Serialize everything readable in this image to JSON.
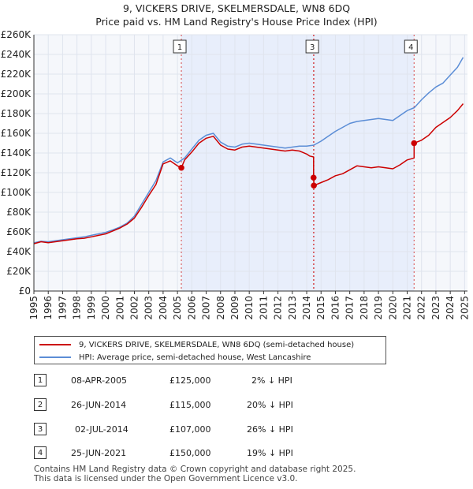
{
  "chart_data": {
    "type": "line",
    "title": "9, VICKERS DRIVE, SKELMERSDALE, WN8 6DQ",
    "subtitle": "Price paid vs. HM Land Registry's House Price Index (HPI)",
    "x_ticks": [
      "1995",
      "1996",
      "1997",
      "1998",
      "1999",
      "2000",
      "2001",
      "2002",
      "2003",
      "2004",
      "2005",
      "2006",
      "2007",
      "2008",
      "2009",
      "2010",
      "2011",
      "2012",
      "2013",
      "2014",
      "2015",
      "2016",
      "2017",
      "2018",
      "2019",
      "2020",
      "2021",
      "2022",
      "2023",
      "2024",
      "2025"
    ],
    "y_ticks": [
      "£0",
      "£20K",
      "£40K",
      "£60K",
      "£80K",
      "£100K",
      "£120K",
      "£140K",
      "£160K",
      "£180K",
      "£200K",
      "£220K",
      "£240K",
      "£260K"
    ],
    "xlim": [
      1995,
      2025.2
    ],
    "ylim": [
      0,
      260000
    ],
    "shaded_range": [
      2005.27,
      2021.48
    ],
    "series": [
      {
        "name": "9, VICKERS DRIVE, SKELMERSDALE, WN8 6DQ (semi-detached house)",
        "color": "#cc0000",
        "x": [
          1995,
          1995.5,
          1996,
          1996.5,
          1997,
          1997.5,
          1998,
          1998.5,
          1999,
          1999.5,
          2000,
          2000.5,
          2001,
          2001.5,
          2002,
          2002.5,
          2003,
          2003.5,
          2004,
          2004.5,
          2005,
          2005.27,
          2005.27,
          2005.5,
          2006,
          2006.5,
          2007,
          2007.5,
          2008,
          2008.5,
          2009,
          2009.5,
          2010,
          2010.5,
          2011,
          2011.5,
          2012,
          2012.5,
          2013,
          2013.5,
          2014,
          2014.2,
          2014.48,
          2014.48,
          2014.5,
          2014.5,
          2015,
          2015.5,
          2016,
          2016.5,
          2017,
          2017.5,
          2018,
          2018.5,
          2019,
          2019.5,
          2020,
          2020.5,
          2021,
          2021.48,
          2021.48,
          2022,
          2022.5,
          2023,
          2023.5,
          2024,
          2024.5,
          2024.9
        ],
        "values": [
          48000,
          50000,
          49000,
          50000,
          51000,
          52000,
          53000,
          53500,
          55000,
          56500,
          58000,
          61000,
          64000,
          68000,
          74000,
          85000,
          97000,
          108000,
          129000,
          132000,
          127000,
          125000,
          125000,
          133000,
          141000,
          150000,
          155000,
          157000,
          148000,
          144000,
          143000,
          146000,
          147000,
          146000,
          145000,
          144000,
          143000,
          142000,
          143000,
          142000,
          139000,
          137000,
          136000,
          115000,
          115000,
          107000,
          110000,
          113000,
          117000,
          119000,
          123000,
          127000,
          126000,
          125000,
          126000,
          125000,
          124000,
          128000,
          133000,
          135000,
          150000,
          153000,
          158000,
          166000,
          171000,
          176000,
          183000,
          190000
        ]
      },
      {
        "name": "HPI: Average price, semi-detached house, West Lancashire",
        "color": "#5b8dd6",
        "x": [
          1995,
          1995.5,
          1996,
          1996.5,
          1997,
          1997.5,
          1998,
          1998.5,
          1999,
          1999.5,
          2000,
          2000.5,
          2001,
          2001.5,
          2002,
          2002.5,
          2003,
          2003.5,
          2004,
          2004.5,
          2005,
          2005.5,
          2006,
          2006.5,
          2007,
          2007.5,
          2008,
          2008.5,
          2009,
          2009.5,
          2010,
          2010.5,
          2011,
          2011.5,
          2012,
          2012.5,
          2013,
          2013.5,
          2014,
          2014.5,
          2015,
          2015.5,
          2016,
          2016.5,
          2017,
          2017.5,
          2018,
          2018.5,
          2019,
          2019.5,
          2020,
          2020.5,
          2021,
          2021.5,
          2022,
          2022.5,
          2023,
          2023.5,
          2024,
          2024.5,
          2024.9
        ],
        "values": [
          49000,
          50500,
          50000,
          51000,
          52000,
          53000,
          54000,
          55000,
          56500,
          58000,
          59500,
          62000,
          65000,
          69000,
          76000,
          88000,
          100000,
          112000,
          131000,
          135000,
          130000,
          135000,
          144000,
          153000,
          158000,
          160000,
          151000,
          147000,
          146000,
          149000,
          150000,
          149000,
          148000,
          147000,
          146000,
          145000,
          146000,
          147000,
          147000,
          148000,
          152000,
          157000,
          162000,
          166000,
          170000,
          172000,
          173000,
          174000,
          175000,
          174000,
          173000,
          178000,
          183000,
          186000,
          194000,
          201000,
          207000,
          211000,
          219000,
          227000,
          237000
        ]
      }
    ],
    "transactions": [
      {
        "label": "1",
        "x": 2005.27,
        "price": 125000,
        "date": "08-APR-2005",
        "price_text": "£125,000",
        "hpi_text": "2% ↓ HPI"
      },
      {
        "label": "2",
        "x": 2014.48,
        "price": 115000,
        "date": "26-JUN-2014",
        "price_text": "£115,000",
        "hpi_text": "20% ↓ HPI"
      },
      {
        "label": "3",
        "x": 2014.5,
        "price": 107000,
        "date": "02-JUL-2014",
        "price_text": "£107,000",
        "hpi_text": "26% ↓ HPI"
      },
      {
        "label": "4",
        "x": 2021.48,
        "price": 150000,
        "date": "25-JUN-2021",
        "price_text": "£150,000",
        "hpi_text": "19% ↓ HPI"
      }
    ],
    "marker_labels_shown": [
      "1",
      "3",
      "4"
    ]
  },
  "footer": {
    "line1": "Contains HM Land Registry data © Crown copyright and database right 2025.",
    "line2": "This data is licensed under the Open Government Licence v3.0."
  },
  "colors": {
    "red": "#cc0000",
    "blue": "#5b8dd6",
    "shade": "#e8eefb",
    "plot_bg": "#f5f7fb",
    "grid": "#dfe4ee"
  }
}
